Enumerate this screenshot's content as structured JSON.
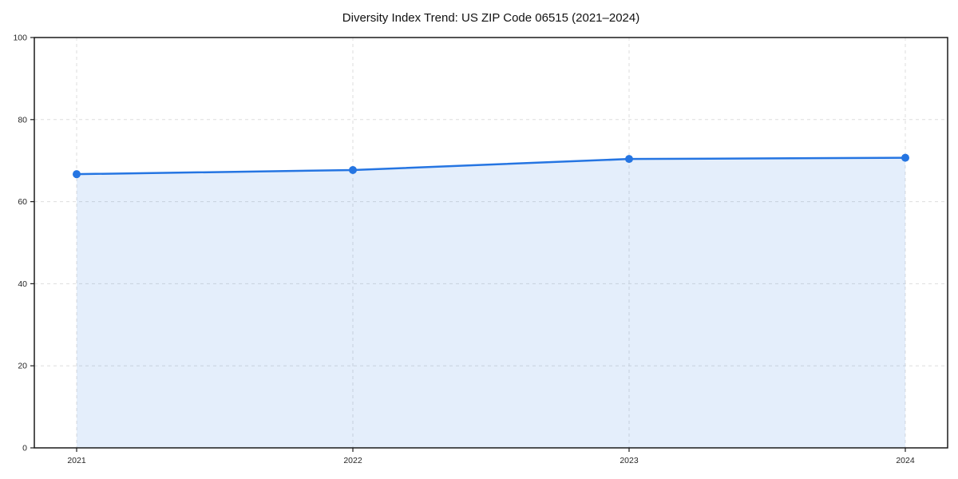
{
  "chart_data": {
    "type": "line",
    "title": "Diversity Index Trend: US ZIP Code 06515 (2021–2024)",
    "categories": [
      "2021",
      "2022",
      "2023",
      "2024"
    ],
    "series": [
      {
        "name": "Diversity Index",
        "values": [
          66.7,
          67.7,
          70.4,
          70.7
        ]
      }
    ],
    "xlabel": "",
    "ylabel": "",
    "ylim": [
      0,
      100
    ],
    "yticks": [
      0,
      20,
      40,
      60,
      80,
      100
    ],
    "grid": true,
    "grid_style": "dashed",
    "legend_position": "none",
    "area_fill": true,
    "marker": "circle",
    "colors": {
      "line": "#2575e2",
      "marker": "#2575e2",
      "area_fill": "rgba(37,117,226,0.12)",
      "gridline": "#dddddd",
      "frame": "#1a1a1a",
      "tick_label": "#262626",
      "title": "#111111",
      "background": "#ffffff"
    }
  }
}
